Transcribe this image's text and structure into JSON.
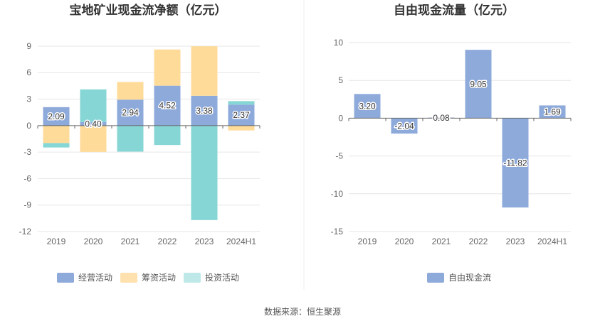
{
  "source": "数据来源：恒生聚源",
  "chart_data": [
    {
      "type": "bar",
      "stacked": true,
      "title": "宝地矿业现金流净额（亿元）",
      "categories": [
        "2019",
        "2020",
        "2021",
        "2022",
        "2023",
        "2024H1"
      ],
      "ylim": [
        -12,
        10.5
      ],
      "yticks": [
        9,
        6,
        3,
        0,
        -3,
        -6,
        -9,
        -12
      ],
      "series": [
        {
          "name": "经营活动",
          "color": "#8eaadb",
          "values": [
            2.09,
            0.4,
            2.94,
            4.52,
            3.38,
            2.37
          ],
          "labels": [
            "2.09",
            "0.40",
            "2.94",
            "4.52",
            "3.38",
            "2.37"
          ]
        },
        {
          "name": "筹资活动",
          "color": "#ffdb9a",
          "values": [
            -1.98,
            -2.98,
            2.0,
            4.1,
            5.6,
            -0.55
          ]
        },
        {
          "name": "投资活动",
          "color": "#87d6d6",
          "values": [
            -0.5,
            3.7,
            -2.95,
            -2.2,
            -10.7,
            0.4
          ]
        }
      ],
      "legend": [
        {
          "name": "经营活动",
          "color": "#8eaadb"
        },
        {
          "name": "筹资活动",
          "color": "#ffe1b0"
        },
        {
          "name": "投资活动",
          "color": "#bfe9e9"
        }
      ]
    },
    {
      "type": "bar",
      "title": "自由现金流量（亿元）",
      "categories": [
        "2019",
        "2020",
        "2021",
        "2022",
        "2023",
        "2024H1"
      ],
      "ylim": [
        -15,
        10
      ],
      "yticks": [
        10,
        5,
        0,
        -5,
        -10,
        -15
      ],
      "series": [
        {
          "name": "自由现金流",
          "color": "#8eaadb",
          "values": [
            3.2,
            -2.04,
            0.08,
            9.05,
            -11.82,
            1.69
          ],
          "labels": [
            "3.20",
            "-2.04",
            "0.08",
            "9.05",
            "-11.82",
            "1.69"
          ]
        }
      ],
      "legend": [
        {
          "name": "自由现金流",
          "color": "#8eaadb"
        }
      ]
    }
  ]
}
